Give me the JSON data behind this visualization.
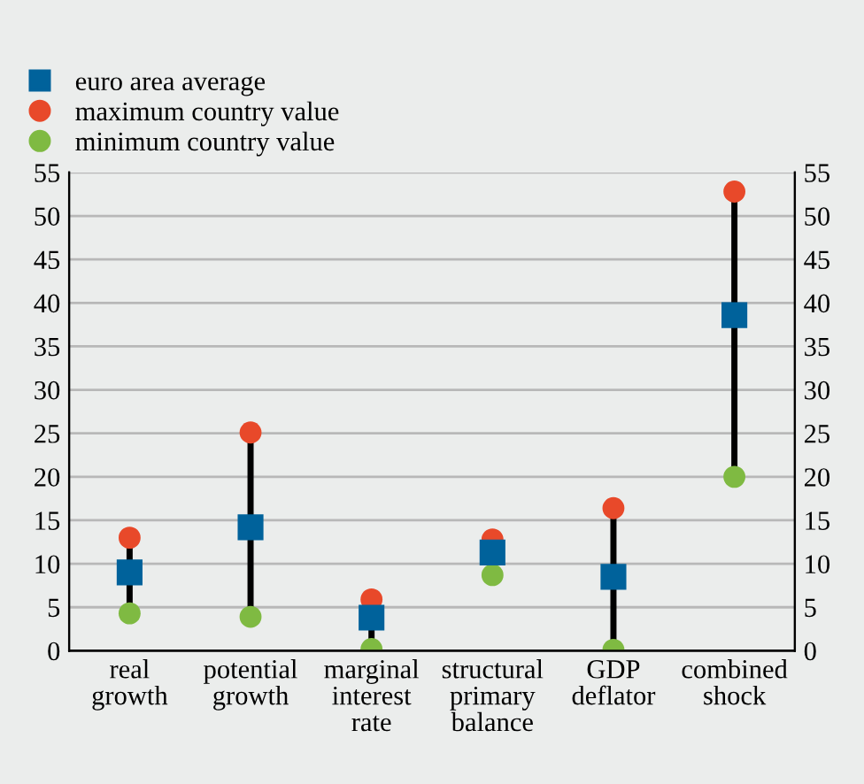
{
  "chart_data": {
    "type": "scatter",
    "categories": [
      "real\ngrowth",
      "potential\ngrowth",
      "marginal\ninterest\nrate",
      "structural\nprimary\nbalance",
      "GDP\ndeflator",
      "combined\nshock"
    ],
    "series": [
      {
        "name": "euro area average",
        "color": "#00629b",
        "marker": "square",
        "values": [
          9.0,
          14.2,
          3.8,
          11.3,
          8.5,
          38.6
        ]
      },
      {
        "name": "maximum country value",
        "color": "#e8492a",
        "marker": "circle",
        "values": [
          13.0,
          25.1,
          5.9,
          12.8,
          16.4,
          52.8
        ]
      },
      {
        "name": "minimum country value",
        "color": "#7fba42",
        "marker": "circle",
        "values": [
          4.3,
          3.9,
          0.2,
          8.7,
          0.1,
          20.0
        ]
      }
    ],
    "ylim": [
      0,
      55
    ],
    "yticks": [
      0,
      5,
      10,
      15,
      20,
      25,
      30,
      35,
      40,
      45,
      50,
      55
    ],
    "y2lim": [
      0,
      55
    ],
    "y2ticks": [
      0,
      5,
      10,
      15,
      20,
      25,
      30,
      35,
      40,
      45,
      50,
      55
    ],
    "grid": true,
    "legend": "top left"
  }
}
